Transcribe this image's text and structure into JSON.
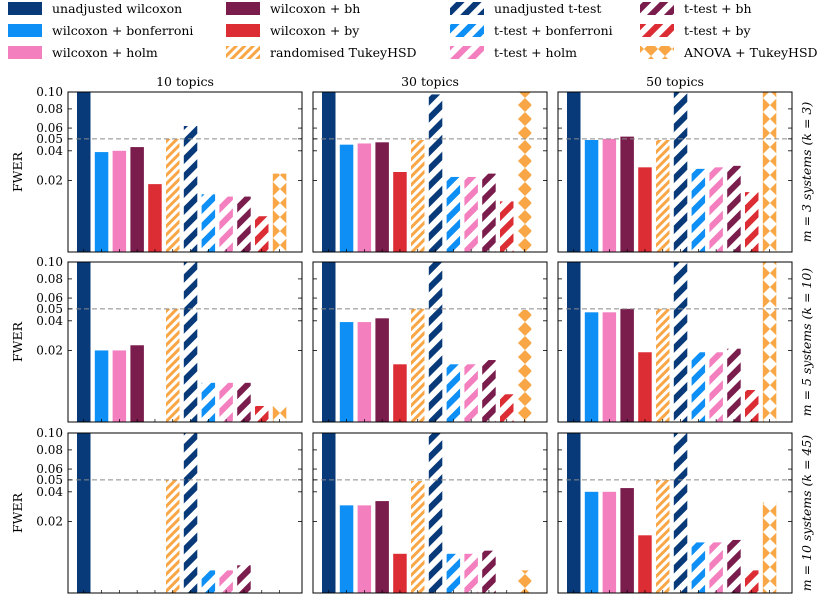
{
  "colors": {
    "unadjusted": "#083a7a",
    "bonferroni": "#0e8ff5",
    "holm": "#f37fbf",
    "bh": "#7a1d4d",
    "by": "#dc2c34",
    "tukey": "#f8a646"
  },
  "legend": [
    {
      "label": "unadjusted wilcoxon",
      "color": "#083a7a",
      "pattern": "solid"
    },
    {
      "label": "wilcoxon + bonferroni",
      "color": "#0e8ff5",
      "pattern": "solid"
    },
    {
      "label": "wilcoxon + holm",
      "color": "#f37fbf",
      "pattern": "solid"
    },
    {
      "label": "wilcoxon + bh",
      "color": "#7a1d4d",
      "pattern": "solid"
    },
    {
      "label": "wilcoxon + by",
      "color": "#dc2c34",
      "pattern": "solid"
    },
    {
      "label": "randomised TukeyHSD",
      "color": "#f8a646",
      "pattern": "stripes"
    },
    {
      "label": "unadjusted t-test",
      "color": "#083a7a",
      "pattern": "bigstripes"
    },
    {
      "label": "t-test + bonferroni",
      "color": "#0e8ff5",
      "pattern": "bigstripes"
    },
    {
      "label": "t-test + holm",
      "color": "#f37fbf",
      "pattern": "bigstripes"
    },
    {
      "label": "t-test + bh",
      "color": "#7a1d4d",
      "pattern": "bigstripes"
    },
    {
      "label": "t-test + by",
      "color": "#dc2c34",
      "pattern": "bigstripes"
    },
    {
      "label": "ANOVA + TukeyHSD",
      "color": "#f8a646",
      "pattern": "diamonds"
    }
  ],
  "chart_data": {
    "type": "bar",
    "ylabel": "FWER",
    "ylim": [
      0,
      0.1
    ],
    "yscale": "sqrt",
    "yticks": [
      0.02,
      0.04,
      0.05,
      0.06,
      0.08,
      0.1
    ],
    "ytick_labels": [
      "0.02",
      "0.04",
      "0.05",
      "0.06",
      "0.08",
      "0.10"
    ],
    "reference_line": 0.05,
    "column_titles": [
      "10 topics",
      "30 topics",
      "50 topics"
    ],
    "row_labels": [
      "m = 3 systems (k = 3)",
      "m = 5 systems (k = 10)",
      "m = 10 systems (k = 45)"
    ],
    "methods": [
      "unadjusted wilcoxon",
      "wilcoxon + bonferroni",
      "wilcoxon + holm",
      "wilcoxon + bh",
      "wilcoxon + by",
      "randomised TukeyHSD",
      "unadjusted t-test",
      "t-test + bonferroni",
      "t-test + holm",
      "t-test + bh",
      "t-test + by",
      "ANOVA + TukeyHSD"
    ],
    "panels": [
      [
        [
          0.1,
          0.039,
          0.04,
          0.043,
          0.018,
          0.05,
          0.062,
          0.013,
          0.012,
          0.012,
          0.005,
          0.024
        ],
        [
          0.1,
          0.045,
          0.046,
          0.047,
          0.025,
          0.049,
          0.097,
          0.022,
          0.022,
          0.024,
          0.01,
          0.1
        ],
        [
          0.1,
          0.049,
          0.05,
          0.052,
          0.028,
          0.049,
          0.1,
          0.027,
          0.028,
          0.029,
          0.014,
          0.1
        ]
      ],
      [
        [
          0.1,
          0.02,
          0.02,
          0.023,
          0.0,
          0.05,
          0.1,
          0.006,
          0.006,
          0.006,
          0.001,
          0.001
        ],
        [
          0.1,
          0.039,
          0.039,
          0.042,
          0.013,
          0.05,
          0.1,
          0.013,
          0.013,
          0.015,
          0.003,
          0.049
        ],
        [
          0.1,
          0.047,
          0.047,
          0.05,
          0.019,
          0.05,
          0.1,
          0.019,
          0.019,
          0.021,
          0.004,
          0.1
        ]
      ],
      [
        [
          0.1,
          0.0,
          0.0,
          0.0,
          0.0,
          0.05,
          0.1,
          0.002,
          0.002,
          0.003,
          0.0,
          0.0
        ],
        [
          0.1,
          0.03,
          0.03,
          0.033,
          0.006,
          0.049,
          0.1,
          0.006,
          0.006,
          0.007,
          0.0,
          0.002
        ],
        [
          0.1,
          0.04,
          0.04,
          0.043,
          0.013,
          0.05,
          0.1,
          0.01,
          0.01,
          0.011,
          0.002,
          0.032
        ]
      ]
    ]
  }
}
